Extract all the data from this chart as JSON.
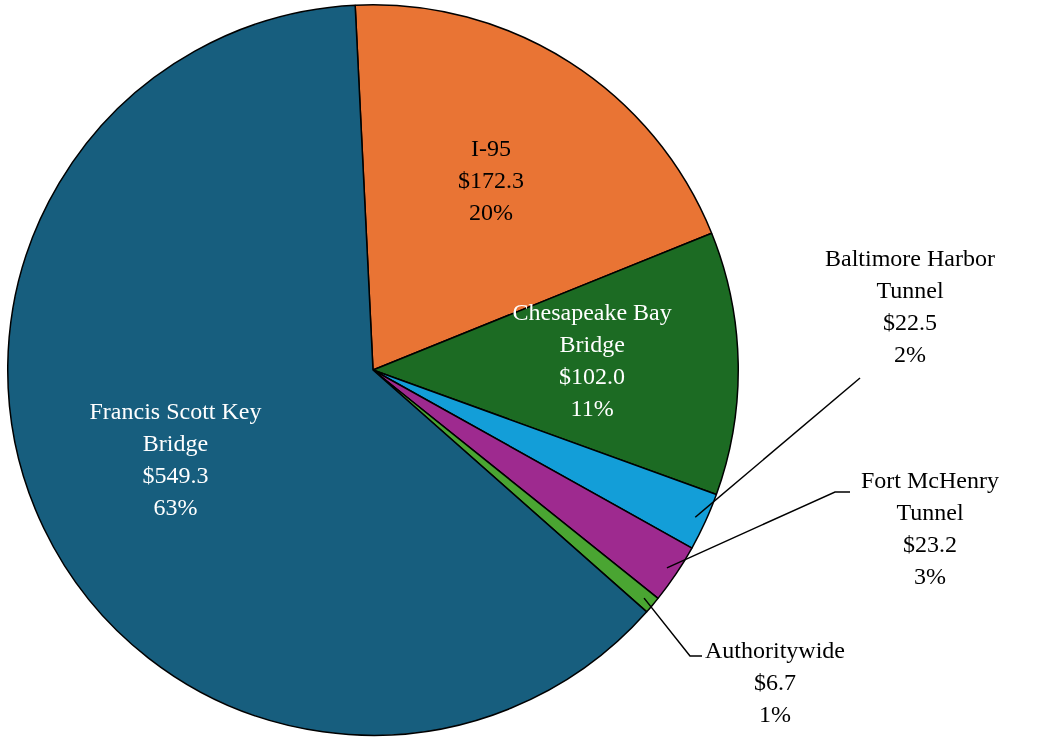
{
  "chart_data": {
    "type": "pie",
    "categories": [
      "I-95",
      "Chesapeake Bay Bridge",
      "Baltimore Harbor Tunnel",
      "Fort McHenry Tunnel",
      "Authoritywide",
      "Francis Scott Key Bridge"
    ],
    "values": [
      172.3,
      102.0,
      22.5,
      23.2,
      6.7,
      549.3
    ],
    "colors": [
      "#e97434",
      "#1c6b23",
      "#139ed8",
      "#9e2a8f",
      "#4aa532",
      "#175e7e"
    ],
    "value_labels": [
      "$172.3\n20%",
      "$102.0\n11%",
      "$22.5\n2%",
      "$23.2\n3%",
      "$6.7\n1%",
      "$549.3\n63%"
    ],
    "legend": false
  }
}
